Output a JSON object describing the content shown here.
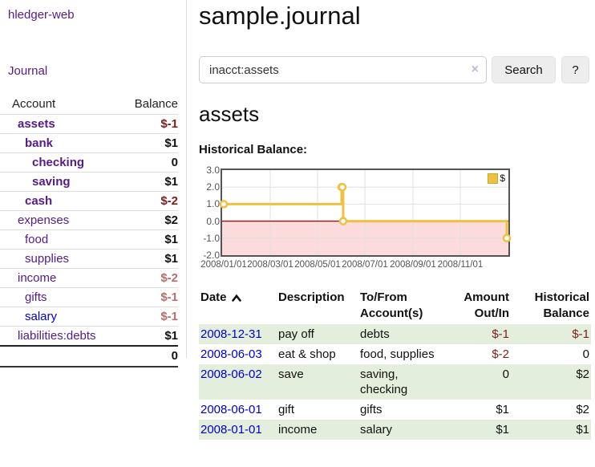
{
  "brand": "hledger-web",
  "nav": {
    "journal": "Journal"
  },
  "sidebar": {
    "headers": {
      "account": "Account",
      "balance": "Balance"
    },
    "accounts": [
      {
        "name": "assets",
        "balance": "$-1",
        "indent": 0,
        "bold": true,
        "bal": "neg"
      },
      {
        "name": "bank",
        "balance": "$1",
        "indent": 1,
        "bold": true,
        "bal": "pos"
      },
      {
        "name": "checking",
        "balance": "0",
        "indent": 2,
        "bold": true,
        "bal": "pos"
      },
      {
        "name": "saving",
        "balance": "$1",
        "indent": 2,
        "bold": true,
        "bal": "pos"
      },
      {
        "name": "cash",
        "balance": "$-2",
        "indent": 1,
        "bold": true,
        "bal": "neg"
      },
      {
        "name": "expenses",
        "balance": "$2",
        "indent": 0,
        "bold": false,
        "bal": "pos"
      },
      {
        "name": "food",
        "balance": "$1",
        "indent": 1,
        "bold": false,
        "bal": "pos"
      },
      {
        "name": "supplies",
        "balance": "$1",
        "indent": 1,
        "bold": false,
        "bal": "pos"
      },
      {
        "name": "income",
        "balance": "$-2",
        "indent": 0,
        "bold": false,
        "bal": "negsoft"
      },
      {
        "name": "gifts",
        "balance": "$-1",
        "indent": 1,
        "bold": false,
        "bal": "negsoft"
      },
      {
        "name": "salary",
        "balance": "$-1",
        "indent": 1,
        "bold": false,
        "bal": "negsoft",
        "link": "blue"
      },
      {
        "name": "liabilities:debts",
        "balance": "$1",
        "indent": 0,
        "bold": false,
        "bal": "pos"
      }
    ],
    "total": "0"
  },
  "header": {
    "title": "sample.journal"
  },
  "search": {
    "value": "inacct:assets",
    "clear_icon": "×",
    "button": "Search",
    "help": "?"
  },
  "account_page": {
    "title": "assets",
    "section_label": "Historical Balance:"
  },
  "chart_data": {
    "type": "line",
    "step": true,
    "title": "Historical Balance:",
    "legend": {
      "label": "$",
      "position": "top-right"
    },
    "series": [
      {
        "name": "$",
        "color": "#edc240",
        "points": [
          [
            "2008-01-01",
            1
          ],
          [
            "2008-06-01",
            2
          ],
          [
            "2008-06-02",
            2
          ],
          [
            "2008-06-03",
            0
          ],
          [
            "2008-12-31",
            -1
          ]
        ]
      }
    ],
    "x_range": [
      "2008-01-01",
      "2008-12-31"
    ],
    "x_ticks": [
      {
        "date": "2008-01-01",
        "label": "2008/01/01"
      },
      {
        "date": "2008-03-01",
        "label": "2008/03/01"
      },
      {
        "date": "2008-05-01",
        "label": "2008/05/01"
      },
      {
        "date": "2008-07-01",
        "label": "2008/07/01"
      },
      {
        "date": "2008-09-01",
        "label": "2008/09/01"
      },
      {
        "date": "2008-11-01",
        "label": "2008/11/01"
      }
    ],
    "y_ticks": [
      {
        "v": 3,
        "label": "3.0"
      },
      {
        "v": 2,
        "label": "2.0"
      },
      {
        "v": 1,
        "label": "1.0"
      },
      {
        "v": 0,
        "label": "0.0"
      },
      {
        "v": -1,
        "label": "-1.0"
      },
      {
        "v": -2,
        "label": "-2.0"
      }
    ],
    "ylim": [
      -2,
      3
    ],
    "grid": true,
    "colors": {
      "grid": "#e0e0e0",
      "border": "#545454",
      "negative_fill": "#fbdbdb",
      "zero_line": "#991111",
      "marker_fill": "#ffffff"
    }
  },
  "register": {
    "headers": {
      "date": "Date",
      "description": "Description",
      "account": "To/From Account(s)",
      "amount": "Amount Out/In",
      "balance": "Historical Balance"
    },
    "sort": {
      "column": "date",
      "direction": "asc"
    },
    "rows": [
      {
        "date": "2008-12-31",
        "description": "pay off",
        "accounts": "debts",
        "amount": "$-1",
        "balance": "$-1",
        "amount_neg": true,
        "balance_neg": true
      },
      {
        "date": "2008-06-03",
        "description": "eat & shop",
        "accounts": "food, supplies",
        "amount": "$-2",
        "balance": "0",
        "amount_neg": true,
        "balance_neg": false
      },
      {
        "date": "2008-06-02",
        "description": "save",
        "accounts": "saving,\nchecking",
        "amount": "0",
        "balance": "$2",
        "amount_neg": false,
        "balance_neg": false
      },
      {
        "date": "2008-06-01",
        "description": "gift",
        "accounts": "gifts",
        "amount": "$1",
        "balance": "$2",
        "amount_neg": false,
        "balance_neg": false
      },
      {
        "date": "2008-01-01",
        "description": "income",
        "accounts": "salary",
        "amount": "$1",
        "balance": "$1",
        "amount_neg": false,
        "balance_neg": false
      }
    ]
  }
}
